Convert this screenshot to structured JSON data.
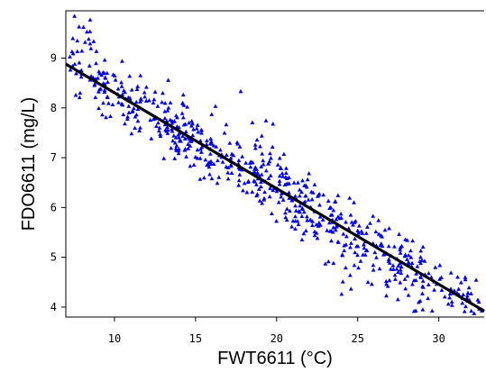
{
  "chart_data": {
    "type": "scatter",
    "title": "",
    "xlabel": "FWT6611 (°C)",
    "ylabel": "FDO6611 (mg/L)",
    "xlim": [
      7.0,
      32.8
    ],
    "ylim": [
      3.8,
      9.95
    ],
    "xticks": [
      10,
      15,
      20,
      25,
      30
    ],
    "yticks": [
      4,
      5,
      6,
      7,
      8,
      9
    ],
    "grid": false,
    "point_color": "#0000ee",
    "fit_line_color": "#000000",
    "fit_line": {
      "x": [
        7.0,
        32.8
      ],
      "y": [
        8.88,
        3.92
      ]
    },
    "point_count": 700,
    "point_trend": {
      "x_from": 7.2,
      "x_to": 32.7,
      "slope": -0.1925,
      "intercept_at_x0": 10.23
    }
  }
}
